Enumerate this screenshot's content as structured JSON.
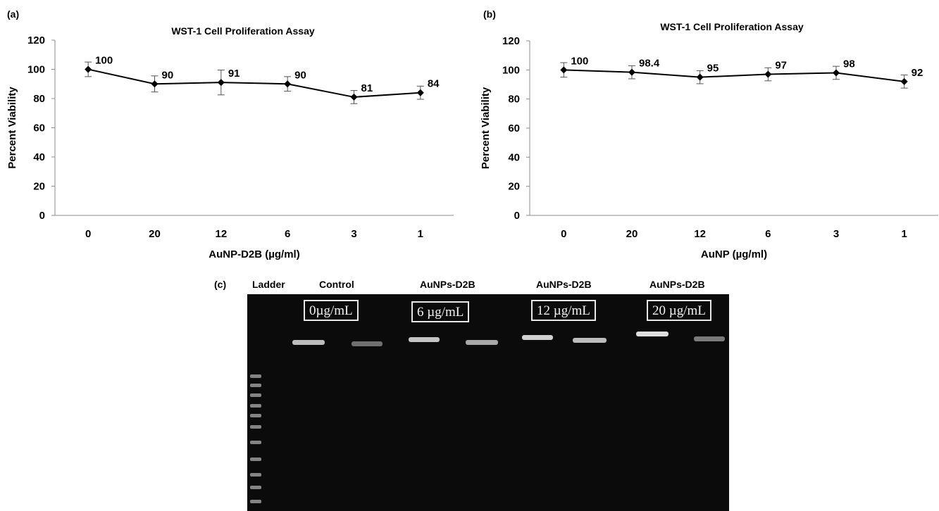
{
  "panels": {
    "a": "(a)",
    "b": "(b)",
    "c": "(c)"
  },
  "chart_data": [
    {
      "type": "line",
      "title": "WST-1 Cell Proliferation Assay",
      "xlabel": "AuNP-D2B (µg/ml)",
      "ylabel": "Percent Viability",
      "categories": [
        "0",
        "20",
        "12",
        "6",
        "3",
        "1"
      ],
      "values": [
        100,
        90,
        91,
        90,
        81,
        84
      ],
      "errors": [
        5,
        5.5,
        8.5,
        5,
        4.5,
        4.5
      ],
      "data_labels": [
        "100",
        "90",
        "91",
        "90",
        "81",
        "84"
      ],
      "ylim": [
        0,
        120
      ],
      "yticks": [
        "0",
        "20",
        "40",
        "60",
        "80",
        "100",
        "120"
      ],
      "grid": false,
      "color": "#000000"
    },
    {
      "type": "line",
      "title": "WST-1 Cell Proliferation Assay",
      "xlabel": "AuNP (µg/ml)",
      "ylabel": "Percent Viability",
      "categories": [
        "0",
        "20",
        "12",
        "6",
        "3",
        "1"
      ],
      "values": [
        100,
        98.4,
        95,
        97,
        98,
        92
      ],
      "errors": [
        5,
        4.5,
        4.5,
        4.5,
        4.5,
        4.5
      ],
      "data_labels": [
        "100",
        "98.4",
        "95",
        "97",
        "98",
        "92"
      ],
      "ylim": [
        0,
        120
      ],
      "yticks": [
        "0",
        "20",
        "40",
        "60",
        "80",
        "100",
        "120"
      ],
      "grid": false,
      "color": "#000000"
    }
  ],
  "gel": {
    "headers": {
      "ladder": "Ladder",
      "control": "Control",
      "group1": "AuNPs-D2B",
      "group2": "AuNPs-D2B",
      "group3": "AuNPs-D2B"
    },
    "concentrations": [
      "0µg/mL",
      "6 µg/mL",
      "12 µg/mL",
      "20 µg/mL"
    ]
  }
}
